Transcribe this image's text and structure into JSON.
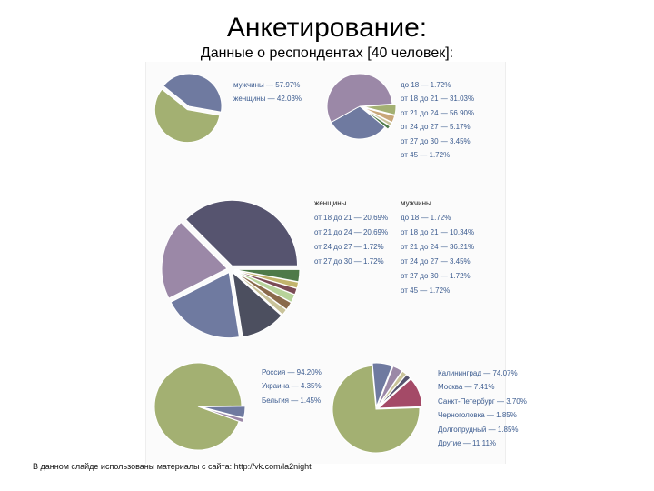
{
  "slide": {
    "title": "Анкетирование:",
    "subtitle": "Данные о респондентах [40 человек]:",
    "footer": "В данном слайде использованы материалы с сайта: http://vk.com/la2night"
  },
  "chart_data": [
    {
      "type": "pie",
      "id": "gender",
      "labels": [
        "мужчины — 57.97%",
        "женщины — 42.03%"
      ],
      "values": [
        57.97,
        42.03
      ],
      "colors": [
        "#a3b072",
        "#6f7aa0"
      ]
    },
    {
      "type": "pie",
      "id": "age-all",
      "labels": [
        "до 18 — 1.72%",
        "от 18 до 21 — 31.03%",
        "от 21 до 24 — 56.90%",
        "от 24 до 27 — 5.17%",
        "от 27 до 30 — 3.45%",
        "от 45 — 1.72%"
      ],
      "values": [
        1.72,
        31.03,
        56.9,
        5.17,
        3.45,
        1.72
      ],
      "colors": [
        "#4e7a49",
        "#6f7aa0",
        "#9b88a7",
        "#a3b072",
        "#c9a77a",
        "#c9c39a"
      ]
    },
    {
      "type": "pie",
      "id": "age-by-gender",
      "series": [
        {
          "name": "женщины",
          "labels": [
            "от 18 до 21 — 20.69%",
            "от 21 до 24 — 20.69%",
            "от 24 до 27 — 1.72%",
            "от 27 до 30 — 1.72%"
          ],
          "values": [
            20.69,
            20.69,
            1.72,
            1.72
          ]
        },
        {
          "name": "мужчины",
          "labels": [
            "до 18 — 1.72%",
            "от 18 до 21 — 10.34%",
            "от 21 до 24 — 36.21%",
            "от 24 до 27 — 3.45%",
            "от 27 до 30 — 1.72%",
            "от 45 — 1.72%"
          ],
          "values": [
            1.72,
            10.34,
            36.21,
            3.45,
            1.72,
            1.72
          ]
        }
      ],
      "colors": [
        "#4e7a49",
        "#c2b46d",
        "#7a4b55",
        "#b7d39a",
        "#8a6a4b",
        "#4c4f5f",
        "#6f7aa0",
        "#9b88a7",
        "#56546f"
      ]
    },
    {
      "type": "pie",
      "id": "country",
      "labels": [
        "Россия — 94.20%",
        "Украина — 4.35%",
        "Бельгия — 1.45%"
      ],
      "values": [
        94.2,
        4.35,
        1.45
      ],
      "colors": [
        "#a3b072",
        "#6f7aa0",
        "#9b88a7"
      ]
    },
    {
      "type": "pie",
      "id": "city",
      "labels": [
        "Калининград — 74.07%",
        "Москва — 7.41%",
        "Санкт-Петербург — 3.70%",
        "Черноголовка — 1.85%",
        "Долгопрудный — 1.85%",
        "Другие — 11.11%"
      ],
      "values": [
        74.07,
        7.41,
        3.7,
        1.85,
        1.85,
        11.11
      ],
      "colors": [
        "#a3b072",
        "#6f7aa0",
        "#9b88a7",
        "#c9c39a",
        "#56546f",
        "#a44a67"
      ]
    }
  ]
}
